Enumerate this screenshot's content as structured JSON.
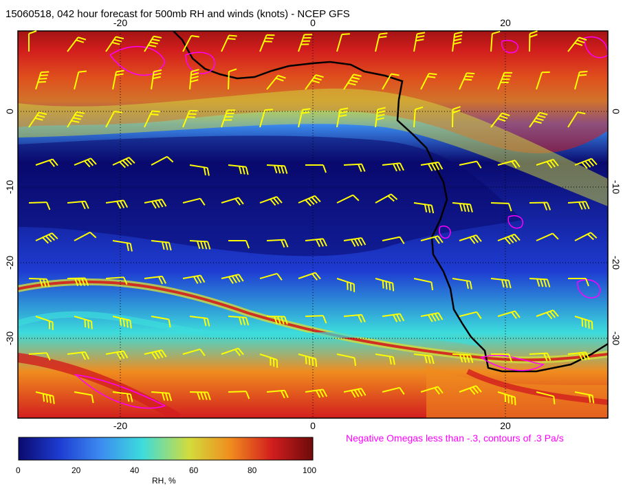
{
  "title": "15060518, 042 hour forecast for 500mb RH and winds (knots) - NCEP GFS",
  "omega_note": "Negative Omegas less than -.3, contours of .3 Pa/s",
  "colorbar": {
    "label": "RH, %",
    "ticks": [
      "0",
      "20",
      "40",
      "60",
      "80",
      "100"
    ],
    "colors": [
      "#0a0a6e",
      "#1e3cd2",
      "#3c8cf0",
      "#3cdcdc",
      "#d2dc3c",
      "#f08c1e",
      "#d21e1e",
      "#6e0a0a"
    ]
  },
  "axes": {
    "x_ticks": [
      "-20",
      "0",
      "20"
    ],
    "y_ticks": [
      "0",
      "-10",
      "-20",
      "-30"
    ]
  },
  "colors": {
    "wind_barb": "#ffff00",
    "omega_contour": "#ff00ff",
    "coastline": "#000000",
    "grid": "#000000"
  }
}
